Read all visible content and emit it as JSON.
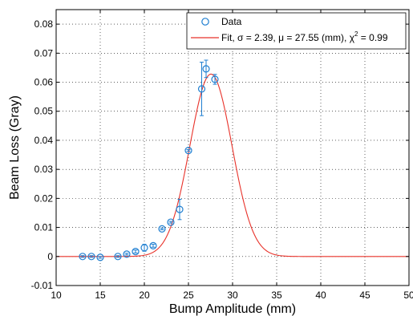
{
  "chart_data": {
    "type": "scatter",
    "xlabel": "Bump Amplitude (mm)",
    "ylabel": "Beam Loss (Gray)",
    "xlim": [
      10,
      50
    ],
    "ylim": [
      -0.01,
      0.085
    ],
    "xticks": [
      "10",
      "15",
      "20",
      "25",
      "30",
      "35",
      "40",
      "45",
      "50"
    ],
    "yticks": [
      "-0.01",
      "0",
      "0.01",
      "0.02",
      "0.03",
      "0.04",
      "0.05",
      "0.06",
      "0.07",
      "0.08"
    ],
    "grid": true,
    "legend_position": "top-right",
    "series": [
      {
        "name": "Data",
        "kind": "points-with-errorbars",
        "color": "#1f7fd1",
        "x": [
          13,
          14,
          15,
          17,
          18,
          19,
          20,
          21,
          22,
          23,
          24,
          25,
          26.5,
          27,
          28
        ],
        "y": [
          0.0,
          0.0,
          -0.0003,
          0.0,
          0.0008,
          0.0017,
          0.003,
          0.0037,
          0.0095,
          0.0118,
          0.0162,
          0.0365,
          0.0577,
          0.0646,
          0.061
        ],
        "err": [
          0.0003,
          0.0003,
          0.0003,
          0.0003,
          0.0003,
          0.0005,
          0.0012,
          0.0005,
          0.0003,
          0.0003,
          0.0035,
          0.0003,
          0.0092,
          0.003,
          0.0017
        ]
      },
      {
        "name": "Fit, σ = 2.39, μ = 27.55 (mm), χ2 = 0.99",
        "kind": "gaussian-line",
        "color": "#e8322a",
        "sigma": 2.39,
        "mu": 27.55,
        "amplitude": 0.0628
      }
    ],
    "legend": {
      "data_label": "Data",
      "fit_label_main": "Fit, σ = 2.39, μ = 27.55 (mm), χ",
      "fit_label_sup": "2",
      "fit_label_tail": " = 0.99"
    }
  }
}
